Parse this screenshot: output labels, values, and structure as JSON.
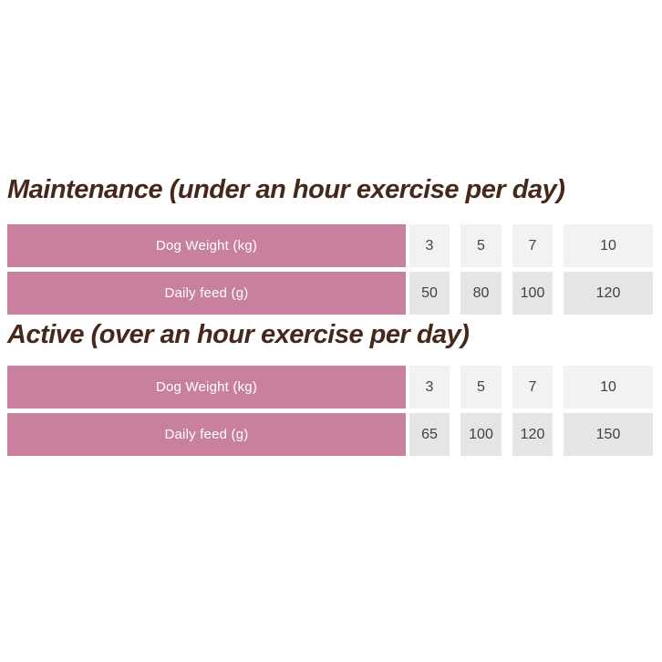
{
  "colors": {
    "heading_text": "#46281b",
    "label_cell_bg": "#c8809e",
    "label_cell_text": "#ffffff",
    "row_odd_bg": "#f2f2f2",
    "row_even_bg": "#e5e5e5",
    "value_text": "#414141",
    "page_bg": "#ffffff"
  },
  "sections": [
    {
      "heading": "Maintenance (under an hour exercise per day)",
      "table": {
        "rows": [
          {
            "label": "Dog Weight (kg)",
            "values": [
              "3",
              "5",
              "7",
              "10"
            ]
          },
          {
            "label": "Daily feed (g)",
            "values": [
              "50",
              "80",
              "100",
              "120"
            ]
          }
        ]
      }
    },
    {
      "heading": "Active (over an hour exercise per day)",
      "table": {
        "rows": [
          {
            "label": "Dog Weight (kg)",
            "values": [
              "3",
              "5",
              "7",
              "10"
            ]
          },
          {
            "label": "Daily feed (g)",
            "values": [
              "65",
              "100",
              "120",
              "150"
            ]
          }
        ]
      }
    }
  ],
  "chart_data": [
    {
      "type": "table",
      "title": "Maintenance (under an hour exercise per day)",
      "columns": [
        "row label",
        "col 1",
        "col 2",
        "col 3",
        "col 4"
      ],
      "rows": [
        [
          "Dog Weight (kg)",
          3,
          5,
          7,
          10
        ],
        [
          "Daily feed (g)",
          50,
          80,
          100,
          120
        ]
      ]
    },
    {
      "type": "table",
      "title": "Active (over an hour exercise per day)",
      "columns": [
        "row label",
        "col 1",
        "col 2",
        "col 3",
        "col 4"
      ],
      "rows": [
        [
          "Dog Weight (kg)",
          3,
          5,
          7,
          10
        ],
        [
          "Daily feed (g)",
          65,
          100,
          120,
          150
        ]
      ]
    }
  ]
}
